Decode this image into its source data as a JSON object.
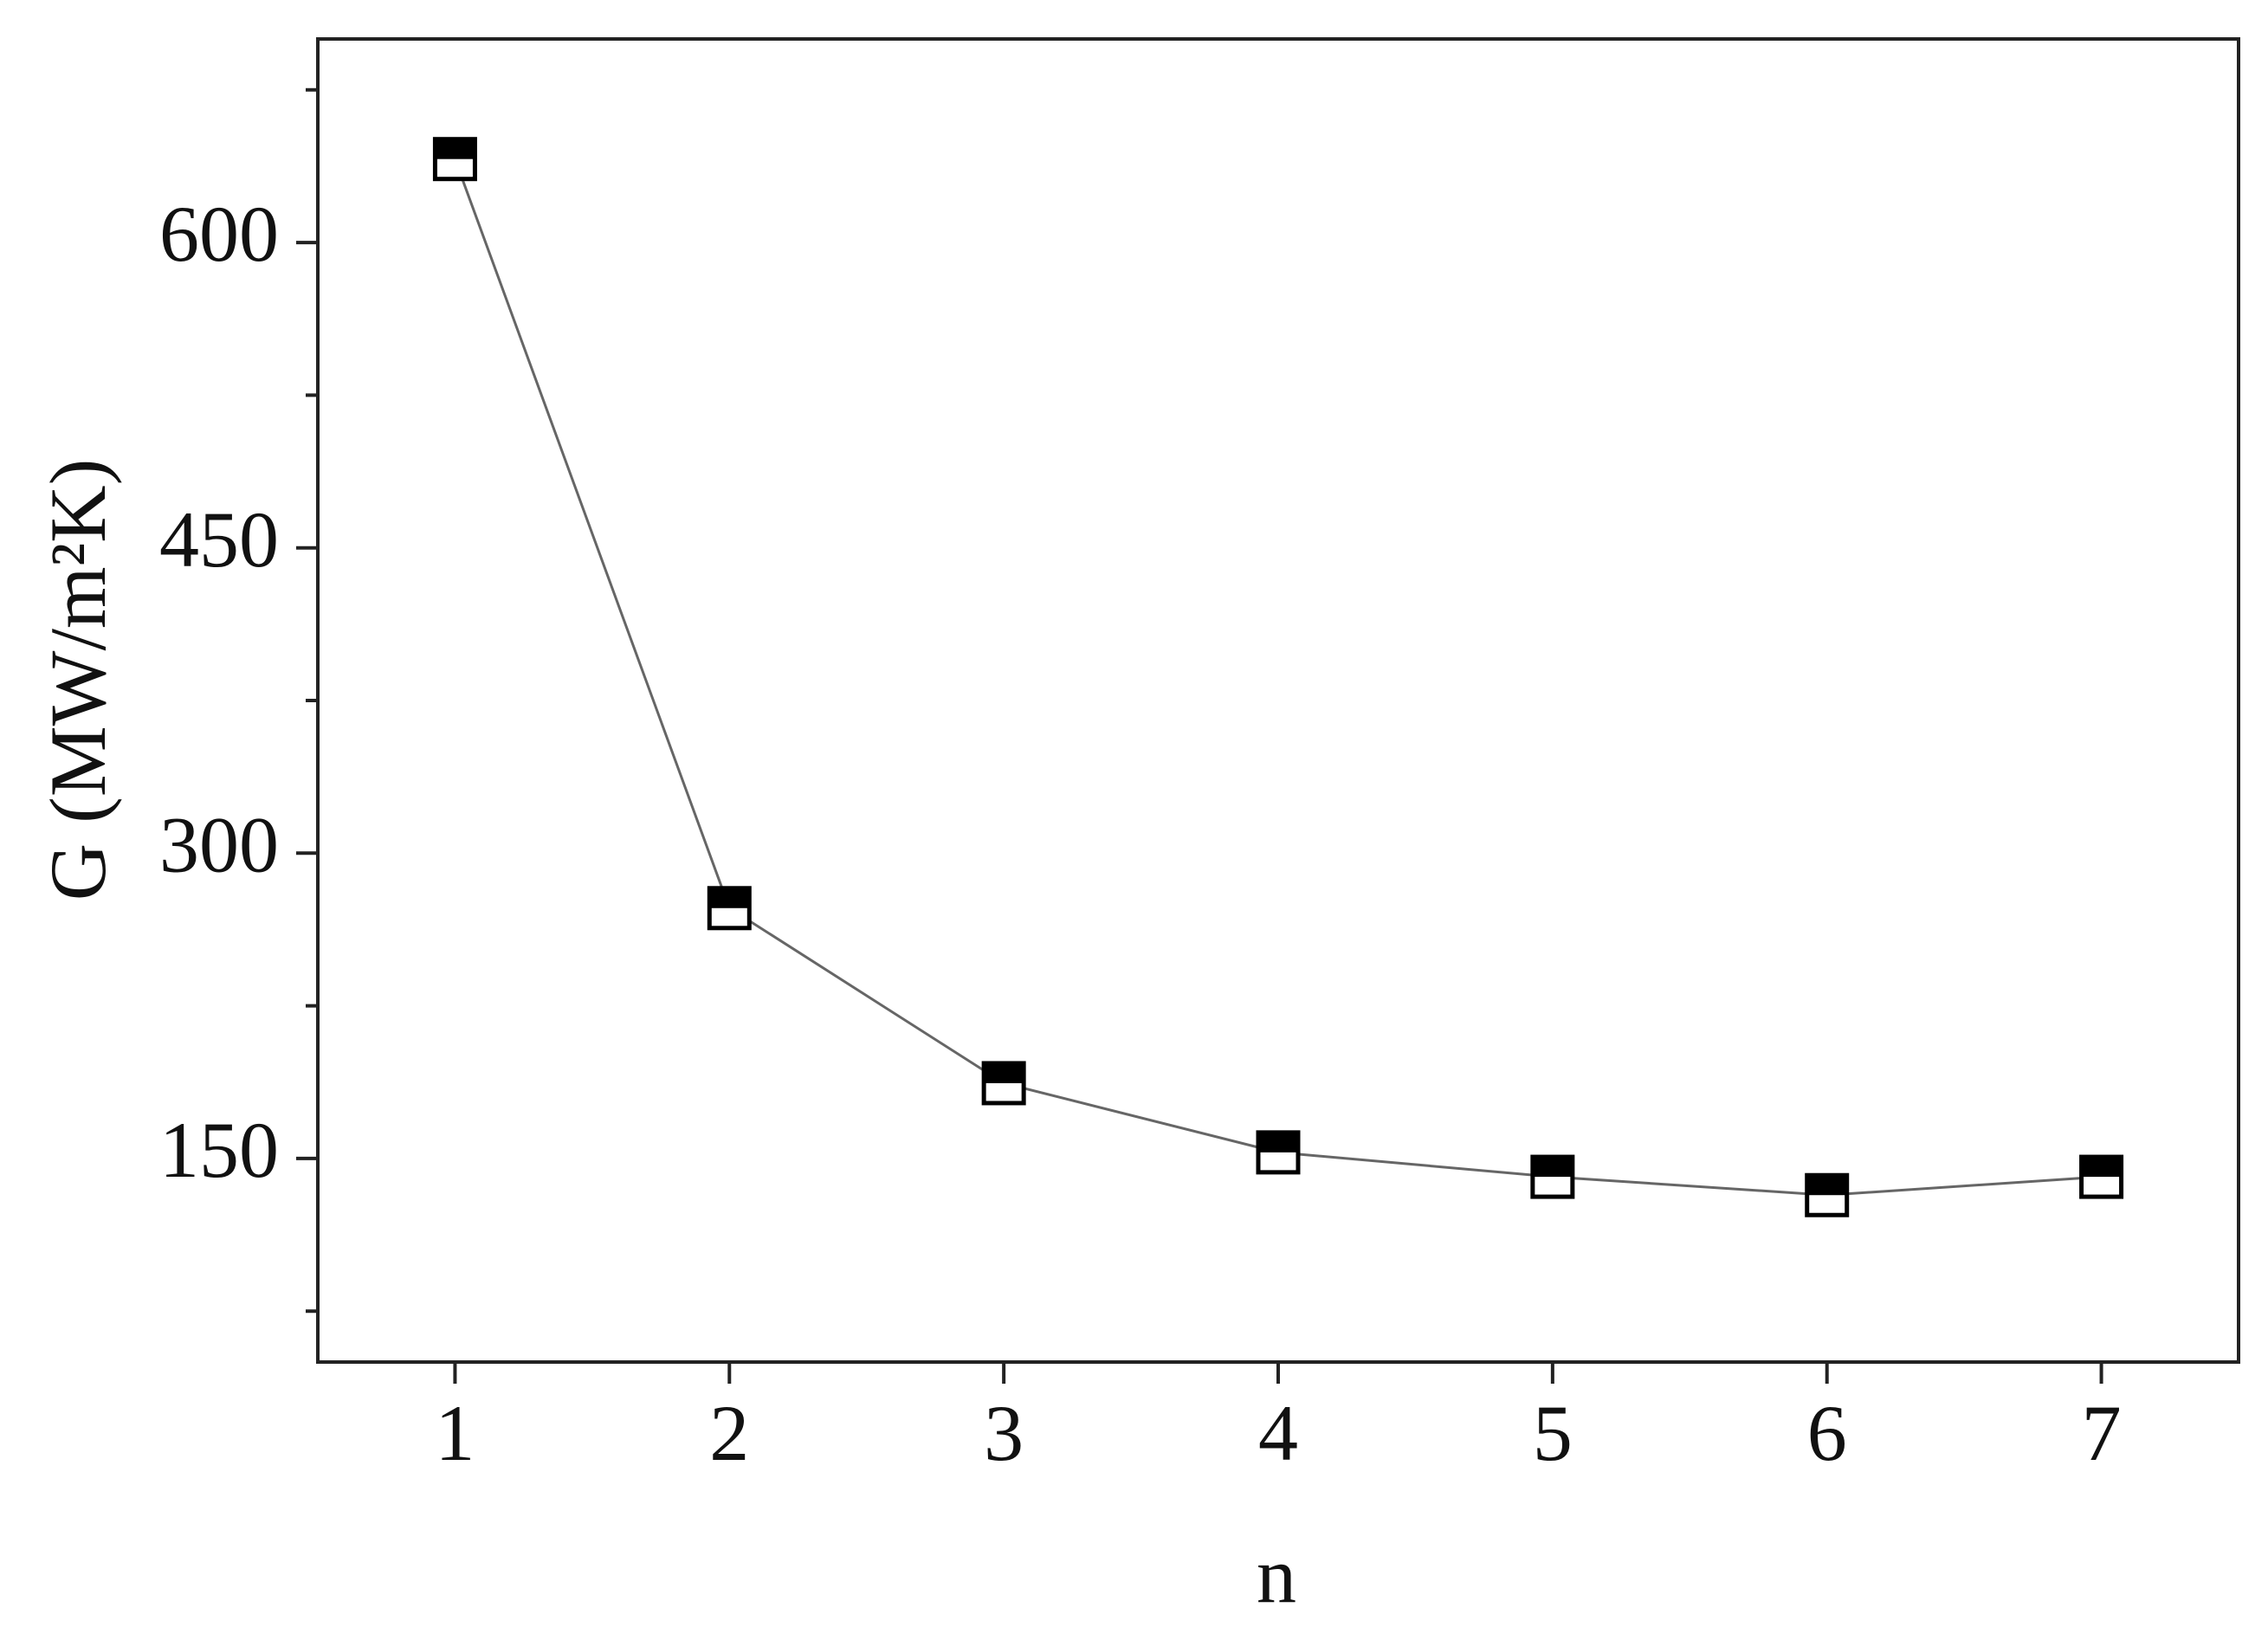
{
  "chart_data": {
    "type": "line",
    "x_label": "n",
    "y_label": "G (MW/m²K)",
    "x": [
      1,
      2,
      3,
      4,
      5,
      6,
      7
    ],
    "series": [
      {
        "values": [
          641,
          273,
          187,
          153,
          141,
          132,
          141
        ],
        "color": "#000000"
      }
    ],
    "line_color": "#666666",
    "xlim": [
      0.5,
      7.5
    ],
    "xticks": [
      1,
      2,
      3,
      4,
      5,
      6,
      7
    ],
    "ylim": [
      50,
      700
    ],
    "yticks": [
      150,
      300,
      450,
      600
    ],
    "yminor": [
      75,
      225,
      375,
      525,
      675
    ],
    "grid": false
  }
}
